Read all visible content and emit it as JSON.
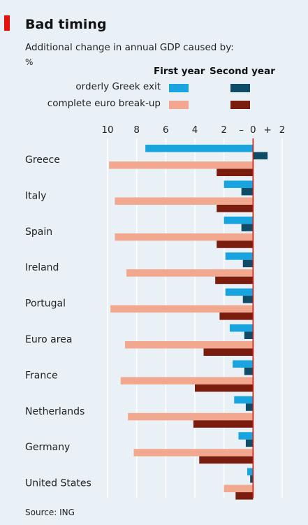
{
  "title": "Bad timing",
  "subtitle": "Additional change in annual GDP caused by:",
  "unit": "%",
  "legend": {
    "col1": "First year",
    "col2": "Second year",
    "row1": "orderly Greek exit",
    "row2": "complete euro break-up"
  },
  "colors": {
    "panel": "#e9f0f6",
    "greek_first": "#17a4df",
    "greek_second": "#0f4c67",
    "euro_first": "#f2a88e",
    "euro_second": "#7a1d0e",
    "zero_line": "#e3120b",
    "grid": "#ffffff",
    "accent": "#e3120b"
  },
  "source": "Source: ING",
  "chart_data": {
    "type": "bar",
    "orientation": "horizontal",
    "title": "Bad timing",
    "subtitle": "Additional change in annual GDP caused by:",
    "unit": "%",
    "categories": [
      "Greece",
      "Italy",
      "Spain",
      "Ireland",
      "Portugal",
      "Euro area",
      "France",
      "Netherlands",
      "Germany",
      "United States"
    ],
    "xlim": [
      -10.5,
      2.7
    ],
    "xticks": [
      {
        "value": -10,
        "label": "10"
      },
      {
        "value": -8,
        "label": "8"
      },
      {
        "value": -6,
        "label": "6"
      },
      {
        "value": -4,
        "label": "4"
      },
      {
        "value": -2,
        "label": "2"
      },
      {
        "value": -0.8,
        "label": "–"
      },
      {
        "value": 0,
        "label": "0"
      },
      {
        "value": 1,
        "label": "+"
      },
      {
        "value": 2,
        "label": "2"
      }
    ],
    "gridlines": [
      -10,
      -8,
      -6,
      -4,
      -2,
      0,
      2
    ],
    "series": [
      {
        "scenario": "orderly Greek exit",
        "period": "First year",
        "values": [
          -7.4,
          -2.0,
          -2.0,
          -1.9,
          -1.9,
          -1.6,
          -1.4,
          -1.3,
          -1.0,
          -0.4
        ]
      },
      {
        "scenario": "orderly Greek exit",
        "period": "Second year",
        "values": [
          1.0,
          -0.8,
          -0.8,
          -0.7,
          -0.7,
          -0.6,
          -0.6,
          -0.5,
          -0.5,
          -0.2
        ]
      },
      {
        "scenario": "complete euro break-up",
        "period": "First year",
        "values": [
          -9.9,
          -9.5,
          -9.5,
          -8.7,
          -9.8,
          -8.8,
          -9.1,
          -8.6,
          -8.2,
          -2.0
        ]
      },
      {
        "scenario": "complete euro break-up",
        "period": "Second year",
        "values": [
          -2.5,
          -2.5,
          -2.5,
          -2.6,
          -2.3,
          -3.4,
          -4.0,
          -4.1,
          -3.7,
          -1.2
        ]
      }
    ]
  }
}
